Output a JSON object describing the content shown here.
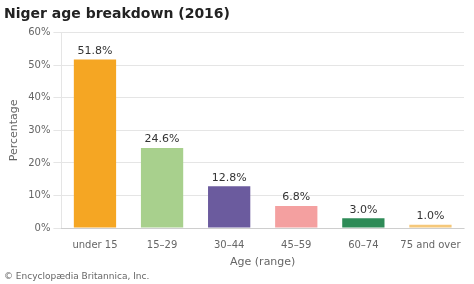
{
  "chart_data": {
    "type": "bar",
    "title": "Niger age breakdown (2016)",
    "categories": [
      "under 15",
      "15–29",
      "30–44",
      "45–59",
      "60–74",
      "75 and over"
    ],
    "values": [
      51.8,
      24.6,
      12.8,
      6.8,
      3.0,
      1.0
    ],
    "value_labels": [
      "51.8%",
      "24.6%",
      "12.8%",
      "6.8%",
      "3.0%",
      "1.0%"
    ],
    "data_labels": true,
    "colors": [
      "#F5A623",
      "#A8D08D",
      "#6B5B9E",
      "#F4A0A0",
      "#2E8B57",
      "#F5C87A"
    ],
    "xlabel": "Age (range)",
    "ylabel": "Percentage",
    "ylim": [
      0,
      60
    ],
    "yticks": [
      {
        "value": 0,
        "label": "0%"
      },
      {
        "value": 10,
        "label": "10%"
      },
      {
        "value": 20,
        "label": "20%"
      },
      {
        "value": 30,
        "label": "30%"
      },
      {
        "value": 40,
        "label": "40%"
      },
      {
        "value": 50,
        "label": "50%"
      },
      {
        "value": 60,
        "label": "60%"
      }
    ],
    "grid": true,
    "footnote": "© Encyclopædia Britannica, Inc."
  }
}
